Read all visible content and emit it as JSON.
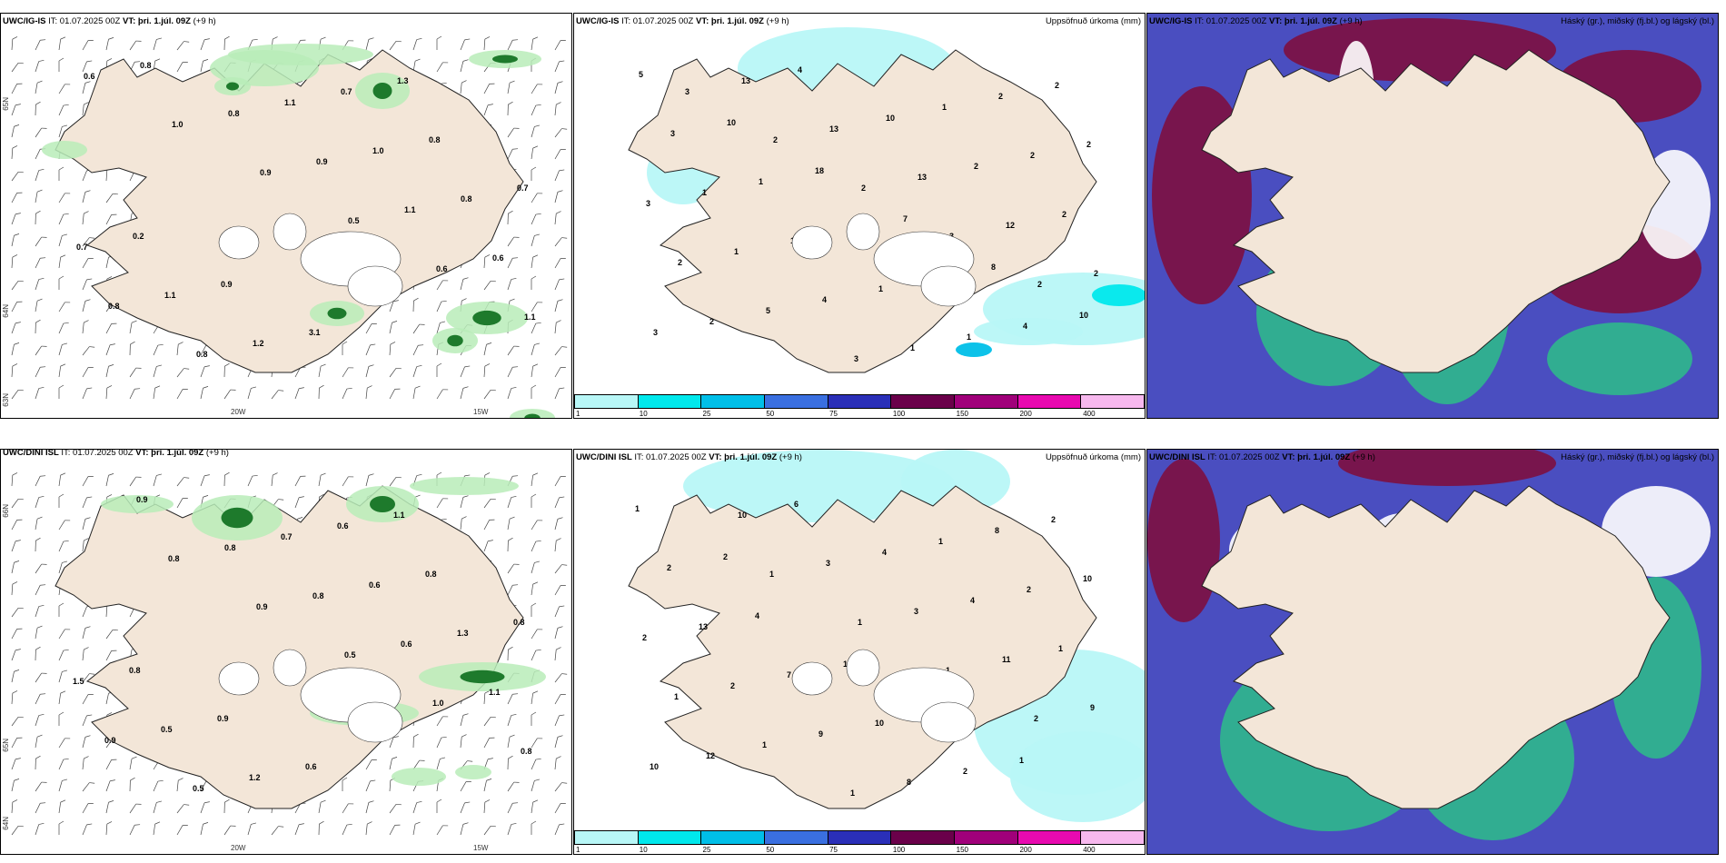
{
  "panels": [
    {
      "model": "UWC/IG-IS",
      "it_label": "IT: 01.07.2025 00Z",
      "vt_label": "VT: þri. 1.júl. 09Z",
      "lead": "(+9 h)",
      "right_title": "",
      "axes": {
        "lat_top": "65N",
        "lat_mid": "64N",
        "lat_low": "63N",
        "lon_left": "20W",
        "lon_right": "15W"
      },
      "values": [
        "0.6",
        "1.0",
        "0.9",
        "0.5",
        "0.6",
        "1.1",
        "0.8",
        "0.8",
        "0.9",
        "1.1",
        "0.6",
        "0.8",
        "0.8",
        "1.1",
        "1.0",
        "0.8",
        "0.7",
        "1.1",
        "1.2",
        "0.7",
        "0.8",
        "0.7",
        "0.2",
        "0.9",
        "3.1",
        "1.3"
      ]
    },
    {
      "model": "UWC/IG-IS",
      "it_label": "IT: 01.07.2025 00Z",
      "vt_label": "VT: þri. 1.júl. 09Z",
      "lead": "(+9 h)",
      "right_title": "Uppsöfnuð úrkoma (mm)",
      "values": [
        "3",
        "2",
        "2",
        "3",
        "2",
        "3",
        "13",
        "13",
        "13",
        "12",
        "2",
        "2",
        "4",
        "10",
        "2",
        "2",
        "2",
        "5",
        "3",
        "1",
        "2",
        "3",
        "1",
        "4",
        "1",
        "2",
        "2",
        "1",
        "1",
        "1",
        "1",
        "2",
        "3",
        "1",
        "2",
        "3",
        "4",
        "5",
        "10",
        "18",
        "7",
        "8",
        "10"
      ],
      "colorbar": [
        "1",
        "10",
        "25",
        "50",
        "75",
        "100",
        "150",
        "200",
        "400"
      ]
    },
    {
      "model": "UWC/IG-IS",
      "it_label": "IT: 01.07.2025 00Z",
      "vt_label": "VT: þri. 1.júl. 09Z",
      "lead": "(+9 h)",
      "right_title": "Háský (gr.), miðský (fj.bl.) og lágský (bl.)"
    },
    {
      "model": "UWC/DINI ISL",
      "it_label": "IT: 01.07.2025 00Z",
      "vt_label": "VT: þri. 1.júl. 09Z",
      "lead": "(+9 h)",
      "right_title": "",
      "axes": {
        "lat_top": "66N",
        "lat_mid": "65N",
        "lat_low": "64N",
        "lon_left": "20W",
        "lon_right": "15W"
      },
      "values": [
        "0.8",
        "0.9",
        "0.5",
        "1.0",
        "0.8",
        "0.9",
        "0.8",
        "0.8",
        "0.6",
        "1.1",
        "0.9",
        "0.5",
        "0.7",
        "0.6",
        "1.3",
        "1.5",
        "0.5",
        "1.2",
        "0.6",
        "0.8",
        "0.8",
        "0.8",
        "0.9",
        "0.6",
        "1.1"
      ]
    },
    {
      "model": "UWC/DINI ISL",
      "it_label": "IT: 01.07.2025 00Z",
      "vt_label": "VT: þri. 1.júl. 09Z",
      "lead": "(+9 h)",
      "right_title": "Uppsöfnuð úrkoma (mm)",
      "values": [
        "1",
        "1",
        "1",
        "2",
        "10",
        "10",
        "3",
        "3",
        "11",
        "9",
        "12",
        "6",
        "4",
        "4",
        "1",
        "1",
        "1",
        "1",
        "1",
        "2",
        "2",
        "2",
        "9",
        "8",
        "8",
        "10",
        "13",
        "7",
        "10",
        "2",
        "2",
        "2",
        "4",
        "10",
        "2",
        "1",
        "1",
        "2"
      ],
      "colorbar": [
        "1",
        "10",
        "25",
        "50",
        "75",
        "100",
        "150",
        "200",
        "400"
      ]
    },
    {
      "model": "UWC/DINI ISL",
      "it_label": "IT: 01.07.2025 00Z",
      "vt_label": "VT: þri. 1.júl. 09Z",
      "lead": "(+9 h)",
      "right_title": "Háský (gr.), miðský (fj.bl.) og lágský (bl.)"
    }
  ],
  "colors": {
    "land": "#f3e6d8",
    "ice": "#ffffff",
    "precip_green_light": "#b8ecb8",
    "precip_green_dark": "#1e7a2c",
    "precip_cyan": "#b8f7f7",
    "cloud_high": "#7d1040",
    "cloud_mid": "#4a4ec0",
    "cloud_low": "#2fb88c",
    "colorbar": [
      "#b8f7f7",
      "#00e8ec",
      "#00bfe8",
      "#3a6fe0",
      "#2a2fb8",
      "#6a004a",
      "#a0007a",
      "#e80ab0",
      "#f7b8ee"
    ]
  }
}
